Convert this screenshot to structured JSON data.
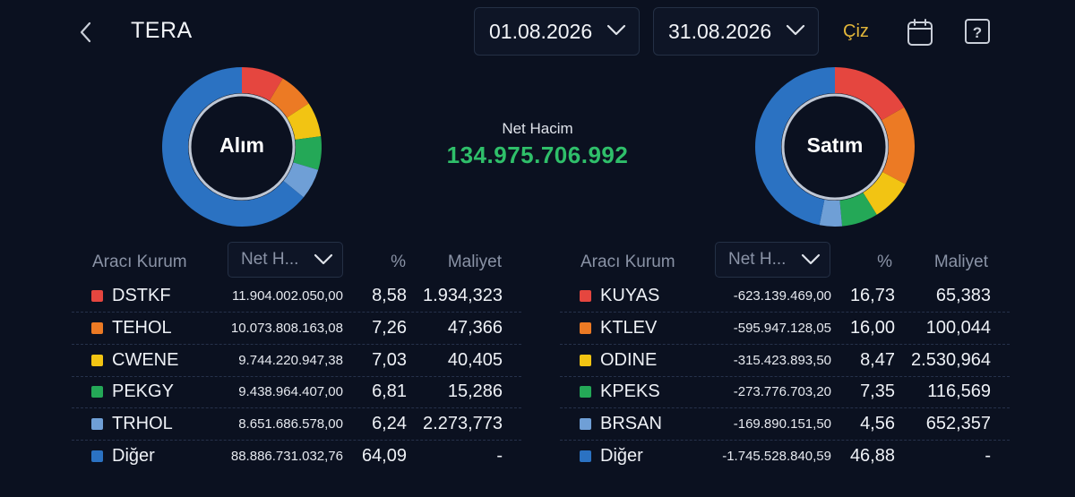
{
  "header": {
    "title": "TERA",
    "start_date": "01.08.2026",
    "end_date": "31.08.2026",
    "draw_label": "Çiz",
    "accent_color": "#e3b73a"
  },
  "summary": {
    "net_label": "Net Hacim",
    "net_value": "134.975.706.992",
    "net_color": "#2fbf6a"
  },
  "colors": [
    "#e5463f",
    "#ec7a24",
    "#f2c413",
    "#24a857",
    "#6f9fd6",
    "#2b72c2"
  ],
  "buy": {
    "donut_label": "Alım",
    "columns": {
      "broker": "Aracı Kurum",
      "select": "Net H...",
      "pct": "%",
      "cost": "Maliyet"
    },
    "rows": [
      {
        "name": "DSTKF",
        "volume": "11.904.002.050,00",
        "pct": "8,58",
        "cost": "1.934,323"
      },
      {
        "name": "TEHOL",
        "volume": "10.073.808.163,08",
        "pct": "7,26",
        "cost": "47,366"
      },
      {
        "name": "CWENE",
        "volume": "9.744.220.947,38",
        "pct": "7,03",
        "cost": "40,405"
      },
      {
        "name": "PEKGY",
        "volume": "9.438.964.407,00",
        "pct": "6,81",
        "cost": "15,286"
      },
      {
        "name": "TRHOL",
        "volume": "8.651.686.578,00",
        "pct": "6,24",
        "cost": "2.273,773"
      },
      {
        "name": "Diğer",
        "volume": "88.886.731.032,76",
        "pct": "64,09",
        "cost": "-"
      }
    ],
    "shares": [
      8.58,
      7.26,
      7.03,
      6.81,
      6.24,
      64.09
    ]
  },
  "sell": {
    "donut_label": "Satım",
    "columns": {
      "broker": "Aracı Kurum",
      "select": "Net H...",
      "pct": "%",
      "cost": "Maliyet"
    },
    "rows": [
      {
        "name": "KUYAS",
        "volume": "-623.139.469,00",
        "pct": "16,73",
        "cost": "65,383"
      },
      {
        "name": "KTLEV",
        "volume": "-595.947.128,05",
        "pct": "16,00",
        "cost": "100,044"
      },
      {
        "name": "ODINE",
        "volume": "-315.423.893,50",
        "pct": "8,47",
        "cost": "2.530,964"
      },
      {
        "name": "KPEKS",
        "volume": "-273.776.703,20",
        "pct": "7,35",
        "cost": "116,569"
      },
      {
        "name": "BRSAN",
        "volume": "-169.890.151,50",
        "pct": "4,56",
        "cost": "652,357"
      },
      {
        "name": "Diğer",
        "volume": "-1.745.528.840,59",
        "pct": "46,88",
        "cost": "-"
      }
    ],
    "shares": [
      16.73,
      16.0,
      8.47,
      7.35,
      4.56,
      46.88
    ]
  }
}
